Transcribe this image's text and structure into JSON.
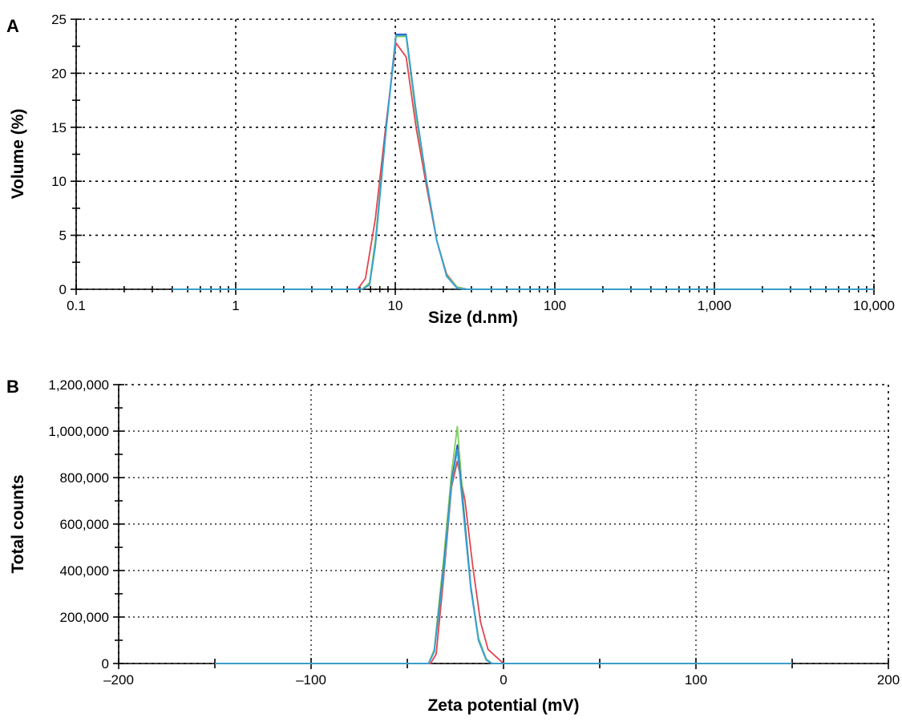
{
  "chart_data": [
    {
      "panel": "A",
      "type": "line",
      "xlabel": "Size (d.nm)",
      "ylabel": "Volume (%)",
      "x_scale": "log",
      "xlim": [
        0.1,
        10000
      ],
      "ylim": [
        0,
        25
      ],
      "xticks": [
        0.1,
        1,
        10,
        100,
        1000,
        10000
      ],
      "xtick_labels": [
        "0.1",
        "1",
        "10",
        "100",
        "1,000",
        "10,000"
      ],
      "yticks": [
        0,
        5,
        10,
        15,
        20,
        25
      ],
      "ytick_labels": [
        "0",
        "5",
        "10",
        "15",
        "20",
        "25"
      ],
      "grid": true,
      "series": [
        {
          "color": "#e2454f",
          "x": [
            0.4,
            5.8,
            6.5,
            7.5,
            8.7,
            10.1,
            11.7,
            13.5,
            15.7,
            18.2,
            21.0,
            24.4,
            28.2,
            10000
          ],
          "y": [
            0,
            0,
            1.0,
            6.5,
            15.0,
            22.8,
            21.5,
            15.0,
            9.5,
            4.5,
            1.4,
            0.2,
            0,
            0
          ]
        },
        {
          "color": "#7ccf5e",
          "x": [
            0.4,
            6.2,
            6.9,
            7.5,
            8.7,
            10.1,
            11.7,
            13.5,
            15.7,
            18.2,
            21.0,
            24.4,
            28.2,
            10000
          ],
          "y": [
            0,
            0,
            0.6,
            4.5,
            14.5,
            23.4,
            23.4,
            16.0,
            10.0,
            4.5,
            1.3,
            0.2,
            0,
            0
          ]
        },
        {
          "color": "#2a46c4",
          "x": [
            0.4,
            6.2,
            6.9,
            7.5,
            8.7,
            10.1,
            11.7,
            13.5,
            15.7,
            18.2,
            21.0,
            24.4,
            28.2,
            10000
          ],
          "y": [
            0,
            0,
            0.4,
            4.0,
            14.5,
            23.6,
            23.6,
            16.5,
            10.0,
            4.5,
            1.2,
            0.1,
            0,
            0
          ]
        },
        {
          "color": "#3aa6d0",
          "x": [
            0.4,
            6.2,
            6.9,
            7.5,
            8.7,
            10.1,
            11.7,
            13.5,
            15.7,
            18.2,
            21.0,
            24.4,
            28.2,
            10000
          ],
          "y": [
            0,
            0,
            0.4,
            4.0,
            14.3,
            23.5,
            23.5,
            16.4,
            10.0,
            4.5,
            1.2,
            0.1,
            0,
            0
          ]
        }
      ]
    },
    {
      "panel": "B",
      "type": "line",
      "xlabel": "Zeta potential (mV)",
      "ylabel": "Total counts",
      "xlim": [
        -200,
        200
      ],
      "ylim": [
        0,
        1200000
      ],
      "xticks": [
        -200,
        -100,
        0,
        100,
        200
      ],
      "xtick_labels": [
        "–200",
        "–100",
        "0",
        "100",
        "200"
      ],
      "yticks": [
        0,
        200000,
        400000,
        600000,
        800000,
        1000000,
        1200000
      ],
      "ytick_labels": [
        "0",
        "200,000",
        "400,000",
        "600,000",
        "800,000",
        "1,000,000",
        "1,200,000"
      ],
      "grid": true,
      "series": [
        {
          "color": "#e2454f",
          "x": [
            -150,
            -38,
            -35,
            -31,
            -27,
            -24,
            -20,
            -16,
            -12,
            -8,
            0,
            150
          ],
          "y": [
            0,
            0,
            40000,
            380000,
            760000,
            870000,
            700000,
            420000,
            180000,
            60000,
            0,
            0
          ]
        },
        {
          "color": "#7ccf5e",
          "x": [
            -150,
            -39,
            -36,
            -31,
            -27,
            -24,
            -21,
            -17,
            -13,
            -9,
            -6,
            150
          ],
          "y": [
            0,
            0,
            60000,
            460000,
            820000,
            1020000,
            700000,
            330000,
            110000,
            20000,
            0,
            0
          ]
        },
        {
          "color": "#2a46c4",
          "x": [
            -150,
            -39,
            -36,
            -31,
            -27,
            -24,
            -21,
            -17,
            -13,
            -9,
            -6,
            150
          ],
          "y": [
            0,
            0,
            50000,
            420000,
            780000,
            940000,
            680000,
            330000,
            100000,
            15000,
            0,
            0
          ]
        },
        {
          "color": "#3aa6d0",
          "x": [
            -150,
            -39,
            -36,
            -31,
            -27,
            -24,
            -21,
            -17,
            -13,
            -9,
            -6,
            150
          ],
          "y": [
            0,
            0,
            50000,
            400000,
            770000,
            920000,
            660000,
            320000,
            100000,
            15000,
            0,
            0
          ]
        }
      ]
    }
  ],
  "figure": {
    "panel_a_letter": "A",
    "panel_b_letter": "B"
  }
}
